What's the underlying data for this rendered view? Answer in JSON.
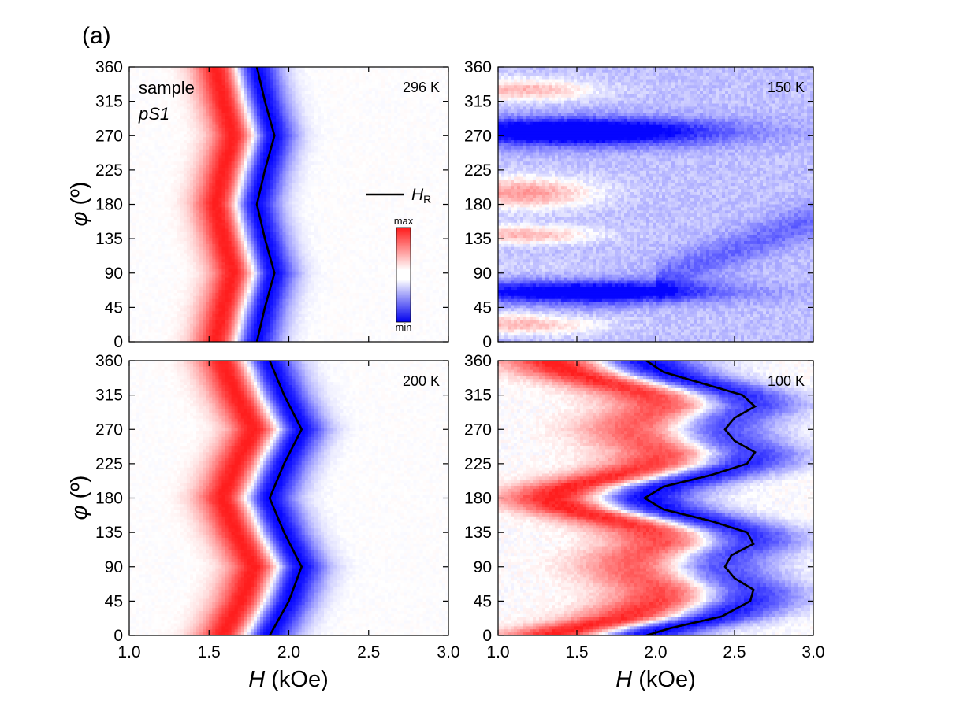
{
  "figure": {
    "panel_label": "(a)",
    "xlabel_italic": "H",
    "xlabel_unit": " (kOe)",
    "ylabel_symbol": "φ",
    "ylabel_unit": " (º)"
  },
  "colorbar": {
    "max_label": "max",
    "min_label": "min"
  },
  "legend": {
    "line_label": "H",
    "line_label_sub": "R"
  },
  "sample_label": {
    "line1": "sample",
    "line2": "pS1"
  },
  "chart_data": [
    {
      "type": "heatmap",
      "title": "296 K",
      "xlim": [
        1.0,
        3.0
      ],
      "ylim": [
        0,
        360
      ],
      "xticks": [
        "1.0",
        "1.5",
        "2.0",
        "2.5",
        "3.0"
      ],
      "yticks": [
        "0",
        "45",
        "90",
        "135",
        "180",
        "225",
        "270",
        "315",
        "360"
      ],
      "has_resonance_line": true,
      "resonance_line": {
        "phi": [
          0,
          45,
          90,
          135,
          180,
          225,
          270,
          315,
          360
        ],
        "H": [
          1.8,
          1.85,
          1.91,
          1.85,
          1.8,
          1.85,
          1.91,
          1.85,
          1.8
        ]
      }
    },
    {
      "type": "heatmap",
      "title": "150 K",
      "xlim": [
        1.0,
        3.0
      ],
      "ylim": [
        0,
        360
      ],
      "xticks": [
        "1.0",
        "1.5",
        "2.0",
        "2.5",
        "3.0"
      ],
      "yticks": [
        "0",
        "45",
        "90",
        "135",
        "180",
        "225",
        "270",
        "315",
        "360"
      ],
      "has_resonance_line": false
    },
    {
      "type": "heatmap",
      "title": "200 K",
      "xlim": [
        1.0,
        3.0
      ],
      "ylim": [
        0,
        360
      ],
      "xticks": [
        "1.0",
        "1.5",
        "2.0",
        "2.5",
        "3.0"
      ],
      "yticks": [
        "0",
        "45",
        "90",
        "135",
        "180",
        "225",
        "270",
        "315",
        "360"
      ],
      "has_resonance_line": true,
      "resonance_line": {
        "phi": [
          0,
          45,
          90,
          135,
          180,
          225,
          270,
          315,
          360
        ],
        "H": [
          1.88,
          2.0,
          2.08,
          1.97,
          1.88,
          1.97,
          2.08,
          1.97,
          1.88
        ]
      }
    },
    {
      "type": "heatmap",
      "title": "100 K",
      "xlim": [
        1.0,
        3.0
      ],
      "ylim": [
        0,
        360
      ],
      "xticks": [
        "1.0",
        "1.5",
        "2.0",
        "2.5",
        "3.0"
      ],
      "yticks": [
        "0",
        "45",
        "90",
        "135",
        "180",
        "225",
        "270",
        "315",
        "360"
      ],
      "has_resonance_line": true,
      "resonance_line": {
        "phi": [
          0,
          10,
          25,
          45,
          60,
          75,
          90,
          105,
          120,
          135,
          150,
          165,
          180,
          195,
          210,
          225,
          240,
          255,
          270,
          285,
          300,
          315,
          330,
          345,
          360
        ],
        "H": [
          1.94,
          2.1,
          2.42,
          2.6,
          2.62,
          2.5,
          2.44,
          2.48,
          2.62,
          2.58,
          2.35,
          2.05,
          1.93,
          2.05,
          2.35,
          2.58,
          2.63,
          2.5,
          2.44,
          2.5,
          2.63,
          2.55,
          2.3,
          2.05,
          1.94
        ]
      }
    }
  ]
}
